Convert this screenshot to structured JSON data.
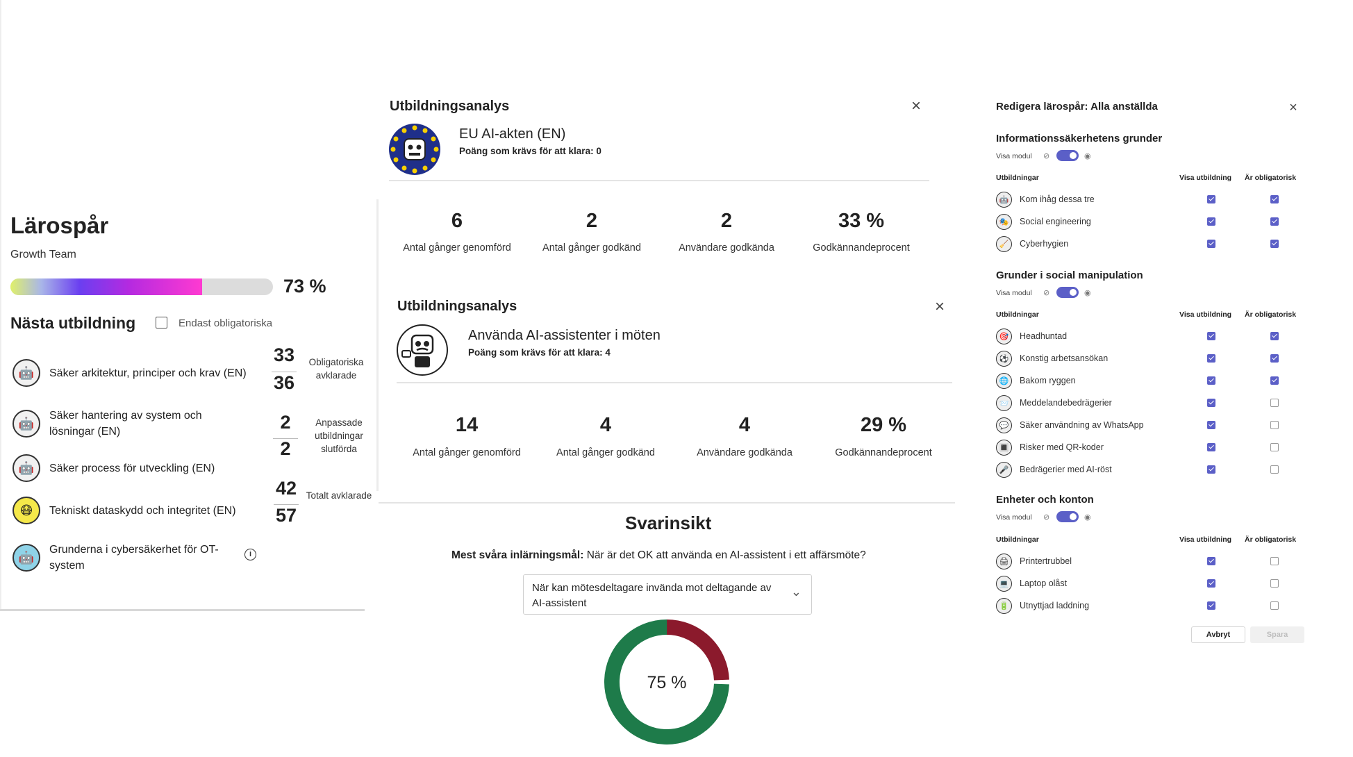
{
  "left": {
    "title": "Lärospår",
    "team": "Growth Team",
    "progress": {
      "value": 73,
      "label": "73 %"
    },
    "next_title": "Nästa utbildning",
    "mandatory_filter": {
      "label": "Endast obligatoriska",
      "checked": false
    },
    "courses": [
      {
        "label": "Säker arkitektur, principer och krav (EN)",
        "icon": "robot-avatar-icon"
      },
      {
        "label": "Säker hantering av system och lösningar (EN)",
        "icon": "robot-avatar-icon"
      },
      {
        "label": "Säker process för utveckling (EN)",
        "icon": "robot-avatar-icon"
      },
      {
        "label": "Tekniskt dataskydd och integritet (EN)",
        "icon": "robot-avatar-icon"
      },
      {
        "label": "Grunderna i cybersäkerhet för OT-system",
        "icon": "robot-avatar-icon"
      }
    ],
    "stats": [
      {
        "top": "33",
        "bottom": "36",
        "label": "Obligatoriska avklarade"
      },
      {
        "top": "2",
        "bottom": "2",
        "label": "Anpassade utbildningar slutförda"
      },
      {
        "top": "42",
        "bottom": "57",
        "label": "Totalt avklarade"
      }
    ]
  },
  "analysis1": {
    "title": "Utbildningsanalys",
    "course": "EU AI-akten (EN)",
    "pass_req": "Poäng som krävs för att klara: 0",
    "stats": [
      {
        "value": "6",
        "label": "Antal gånger genomförd"
      },
      {
        "value": "2",
        "label": "Antal gånger godkänd"
      },
      {
        "value": "2",
        "label": "Användare godkända"
      },
      {
        "value": "33 %",
        "label": "Godkännandeprocent"
      }
    ]
  },
  "analysis2": {
    "title": "Utbildningsanalys",
    "course": "Använda AI-assistenter i möten",
    "pass_req": "Poäng som krävs för att klara: 4",
    "stats": [
      {
        "value": "14",
        "label": "Antal gånger genomförd"
      },
      {
        "value": "4",
        "label": "Antal gånger godkänd"
      },
      {
        "value": "4",
        "label": "Användare godkända"
      },
      {
        "value": "29 %",
        "label": "Godkännandeprocent"
      }
    ]
  },
  "insight": {
    "title": "Svarinsikt",
    "hardest_label": "Mest svåra inlärningsmål:",
    "hardest_value": "När är det OK att använda en AI-assistent i ett affärsmöte?",
    "dropdown_value": "När kan mötesdeltagare invända mot deltagande av AI-assistent",
    "donut": {
      "value": 75,
      "label": "75 %",
      "color_main": "#1e7b4a",
      "color_rest": "#8b1a2c"
    }
  },
  "editor": {
    "title": "Redigera lärospår: Alla anställda",
    "visa_modul": "Visa modul",
    "col_trainings": "Utbildningar",
    "col_show": "Visa utbildning",
    "col_mandatory": "Är obligatorisk",
    "cancel": "Avbryt",
    "save": "Spara",
    "accent": "#5b5fc7",
    "modules": [
      {
        "name": "Informationssäkerhetens grunder",
        "rows": [
          {
            "label": "Kom ihåg dessa tre",
            "show": true,
            "mandatory": true
          },
          {
            "label": "Social engineering",
            "show": true,
            "mandatory": true
          },
          {
            "label": "Cyberhygien",
            "show": true,
            "mandatory": true
          }
        ]
      },
      {
        "name": "Grunder i social manipulation",
        "rows": [
          {
            "label": "Headhuntad",
            "show": true,
            "mandatory": true
          },
          {
            "label": "Konstig arbetsansökan",
            "show": true,
            "mandatory": true
          },
          {
            "label": "Bakom ryggen",
            "show": true,
            "mandatory": true
          },
          {
            "label": "Meddelandebedrägerier",
            "show": true,
            "mandatory": false
          },
          {
            "label": "Säker användning av WhatsApp",
            "show": true,
            "mandatory": false
          },
          {
            "label": "Risker med QR-koder",
            "show": true,
            "mandatory": false
          },
          {
            "label": "Bedrägerier med AI-röst",
            "show": true,
            "mandatory": false
          }
        ]
      },
      {
        "name": "Enheter och konton",
        "rows": [
          {
            "label": "Printertrubbel",
            "show": true,
            "mandatory": false
          },
          {
            "label": "Laptop olåst",
            "show": true,
            "mandatory": false
          },
          {
            "label": "Utnyttjad laddning",
            "show": true,
            "mandatory": false
          }
        ]
      }
    ]
  }
}
